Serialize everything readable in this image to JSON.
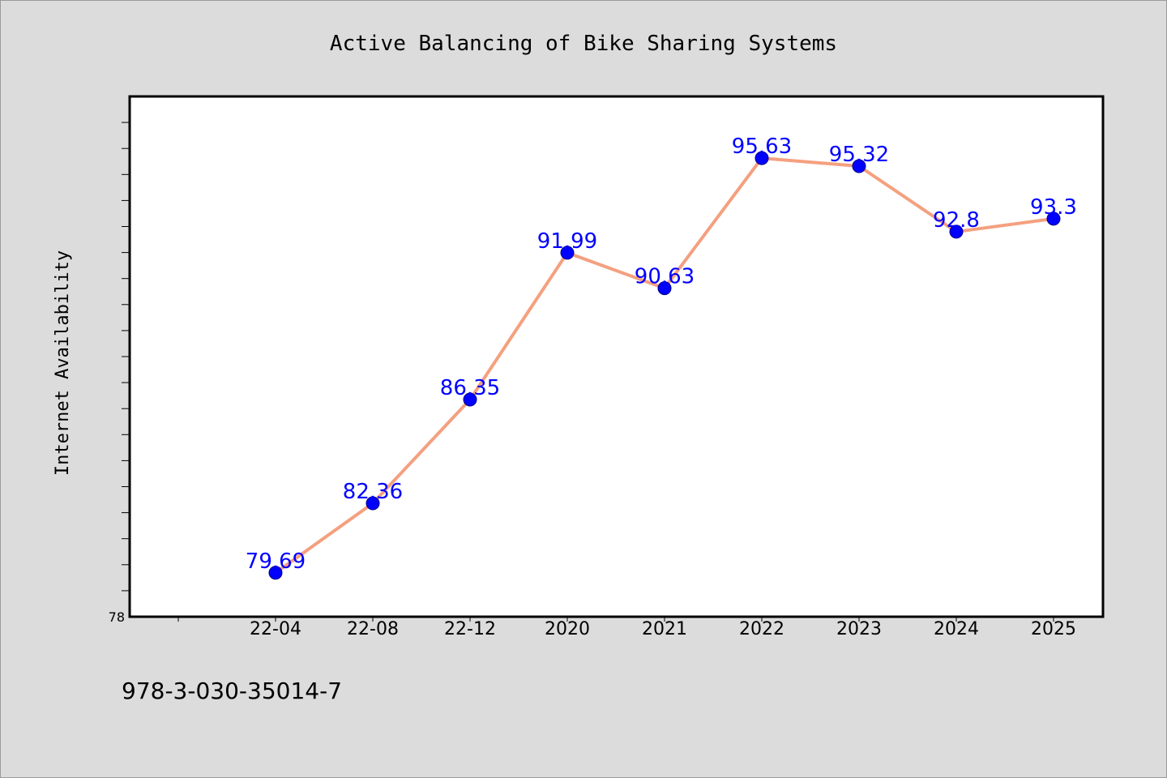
{
  "chart_data": {
    "type": "line",
    "title": "Active Balancing of Bike Sharing Systems",
    "xlabel": "",
    "ylabel": "Internet Availability",
    "categories": [
      "22-04",
      "22-08",
      "22-12",
      "2020",
      "2021",
      "2022",
      "2023",
      "2024",
      "2025"
    ],
    "series": [
      {
        "values": [
          79.69,
          82.36,
          86.35,
          91.99,
          90.63,
          95.63,
          95.32,
          92.8,
          93.3
        ],
        "labels": [
          "79.69",
          "82.36",
          "86.35",
          "91.99",
          "90.63",
          "95.63",
          "95.32",
          "92.8",
          "93.3"
        ],
        "line_color": "#f4a07f",
        "marker_color": "#0000ff"
      }
    ],
    "ylim": [
      78,
      98
    ],
    "y_tick_labels": [
      "78"
    ],
    "grid": false,
    "legend": "none"
  },
  "footer": {
    "isbn": "978-3-030-35014-7"
  },
  "colors": {
    "background": "#dcdcdc",
    "plot_background": "#ffffff",
    "data_label": "#0000ff"
  }
}
